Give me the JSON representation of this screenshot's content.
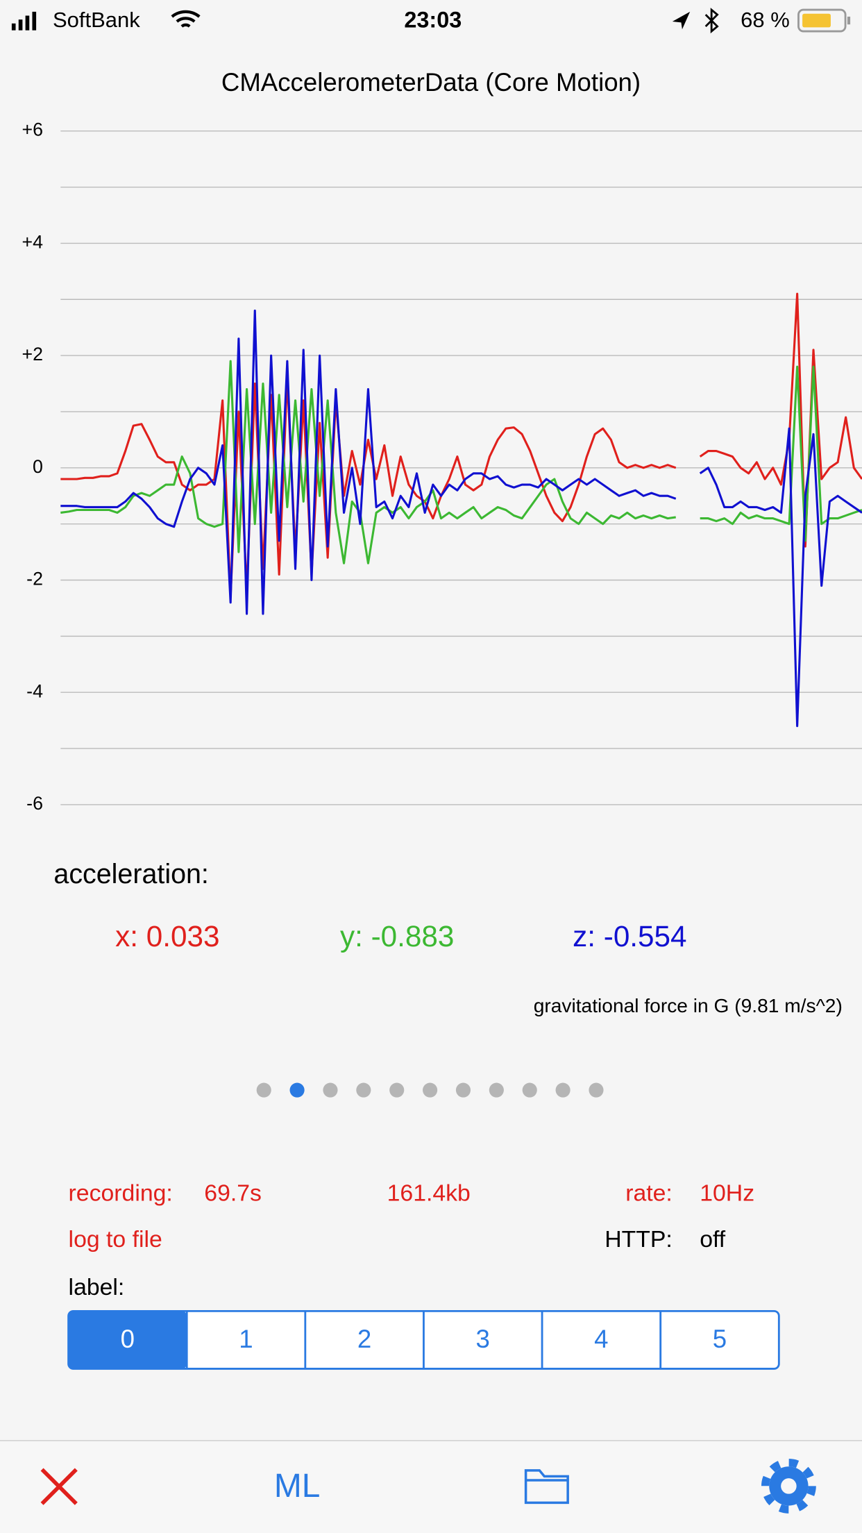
{
  "status_bar": {
    "carrier": "SoftBank",
    "time": "23:03",
    "battery": "68 %"
  },
  "chart_data": {
    "type": "line",
    "title": "CMAccelerometerData (Core Motion)",
    "ylim": [
      -6,
      6
    ],
    "yticks": [
      {
        "value": 6,
        "label": "+6"
      },
      {
        "value": 4,
        "label": "+4"
      },
      {
        "value": 2,
        "label": "+2"
      },
      0,
      -2,
      -4,
      -6
    ],
    "minor_yticks": [
      5,
      3,
      1,
      -1,
      -3,
      -5
    ],
    "grid": true,
    "series": [
      {
        "name": "x",
        "color": "#e0201c",
        "values": [
          -0.2,
          -0.2,
          -0.2,
          -0.18,
          -0.18,
          -0.15,
          -0.15,
          -0.1,
          0.3,
          0.75,
          0.78,
          0.5,
          0.2,
          0.1,
          0.1,
          -0.3,
          -0.4,
          -0.3,
          -0.3,
          -0.2,
          1.2,
          -2.3,
          1.0,
          -2.2,
          1.5,
          -1.8,
          1.3,
          -1.9,
          1.6,
          -1.5,
          1.2,
          -1.9,
          0.8,
          -1.6,
          1.2,
          -0.5,
          0.3,
          -0.3,
          0.5,
          -0.2,
          0.4,
          -0.5,
          0.2,
          -0.3,
          -0.5,
          -0.6,
          -0.9,
          -0.5,
          -0.2,
          0.2,
          -0.3,
          -0.4,
          -0.3,
          0.2,
          0.5,
          0.7,
          0.72,
          0.6,
          0.3,
          -0.1,
          -0.5,
          -0.8,
          -0.95,
          -0.7,
          -0.3,
          0.2,
          0.6,
          0.7,
          0.5,
          0.1,
          0.0,
          0.05,
          0.0,
          0.05,
          0.0,
          0.05,
          0.0,
          null,
          null,
          0.2,
          0.3,
          0.3,
          0.25,
          0.2,
          0.0,
          -0.1,
          0.1,
          -0.2,
          0.0,
          -0.3,
          0.5,
          3.1,
          -1.4,
          2.1,
          -0.2,
          0.0,
          0.1,
          0.9,
          0.0,
          -0.2
        ]
      },
      {
        "name": "y",
        "color": "#3cb832",
        "values": [
          -0.8,
          -0.78,
          -0.75,
          -0.75,
          -0.75,
          -0.75,
          -0.75,
          -0.8,
          -0.7,
          -0.5,
          -0.45,
          -0.5,
          -0.4,
          -0.3,
          -0.3,
          0.2,
          -0.1,
          -0.9,
          -1.0,
          -1.05,
          -1.0,
          1.9,
          -1.5,
          1.4,
          -1.0,
          1.5,
          -0.8,
          1.3,
          -0.7,
          1.2,
          -0.6,
          1.4,
          -0.5,
          1.2,
          -0.8,
          -1.7,
          -0.6,
          -0.8,
          -1.7,
          -0.8,
          -0.7,
          -0.8,
          -0.7,
          -0.9,
          -0.7,
          -0.6,
          -0.4,
          -0.9,
          -0.8,
          -0.9,
          -0.8,
          -0.7,
          -0.9,
          -0.8,
          -0.7,
          -0.75,
          -0.85,
          -0.9,
          -0.7,
          -0.5,
          -0.3,
          -0.2,
          -0.6,
          -0.9,
          -1.0,
          -0.8,
          -0.9,
          -1.0,
          -0.85,
          -0.9,
          -0.8,
          -0.9,
          -0.85,
          -0.9,
          -0.85,
          -0.9,
          -0.88,
          null,
          null,
          -0.9,
          -0.9,
          -0.95,
          -0.9,
          -1.0,
          -0.8,
          -0.9,
          -0.85,
          -0.9,
          -0.9,
          -0.95,
          -1.0,
          1.8,
          -1.3,
          1.8,
          -1.0,
          -0.9,
          -0.9,
          -0.85,
          -0.8,
          -0.75
        ]
      },
      {
        "name": "z",
        "color": "#1010d0",
        "values": [
          -0.68,
          -0.68,
          -0.68,
          -0.7,
          -0.7,
          -0.7,
          -0.7,
          -0.7,
          -0.6,
          -0.45,
          -0.55,
          -0.7,
          -0.9,
          -1.0,
          -1.05,
          -0.6,
          -0.2,
          0.0,
          -0.1,
          -0.3,
          0.4,
          -2.4,
          2.3,
          -2.6,
          2.8,
          -2.6,
          2.0,
          -1.3,
          1.9,
          -1.8,
          2.1,
          -2.0,
          2.0,
          -1.4,
          1.4,
          -0.8,
          0.0,
          -1.0,
          1.4,
          -0.7,
          -0.6,
          -0.9,
          -0.5,
          -0.7,
          -0.1,
          -0.8,
          -0.3,
          -0.5,
          -0.3,
          -0.4,
          -0.2,
          -0.1,
          -0.1,
          -0.2,
          -0.15,
          -0.3,
          -0.35,
          -0.3,
          -0.3,
          -0.35,
          -0.2,
          -0.3,
          -0.4,
          -0.3,
          -0.2,
          -0.3,
          -0.2,
          -0.3,
          -0.4,
          -0.5,
          -0.45,
          -0.4,
          -0.5,
          -0.45,
          -0.5,
          -0.5,
          -0.55,
          null,
          null,
          -0.1,
          0.0,
          -0.3,
          -0.7,
          -0.7,
          -0.6,
          -0.7,
          -0.7,
          -0.75,
          -0.7,
          -0.8,
          0.7,
          -4.6,
          -0.5,
          0.6,
          -2.1,
          -0.6,
          -0.5,
          -0.6,
          -0.7,
          -0.8
        ]
      }
    ]
  },
  "readout": {
    "heading": "acceleration:",
    "x": "x: 0.033",
    "y": "y: -0.883",
    "z": "z: -0.554",
    "note": "gravitational force in G (9.81 m/s^2)"
  },
  "page_control": {
    "count": 11,
    "current": 1
  },
  "recording": {
    "label": "recording:",
    "duration": "69.7s",
    "size": "161.4kb",
    "rate_label": "rate:",
    "rate": "10Hz",
    "log": "log to file",
    "http_label": "HTTP:",
    "http": "off"
  },
  "label_picker": {
    "title": "label:",
    "options": [
      "0",
      "1",
      "2",
      "3",
      "4",
      "5"
    ],
    "selected": 0
  },
  "tab_bar": {
    "ml": "ML"
  }
}
